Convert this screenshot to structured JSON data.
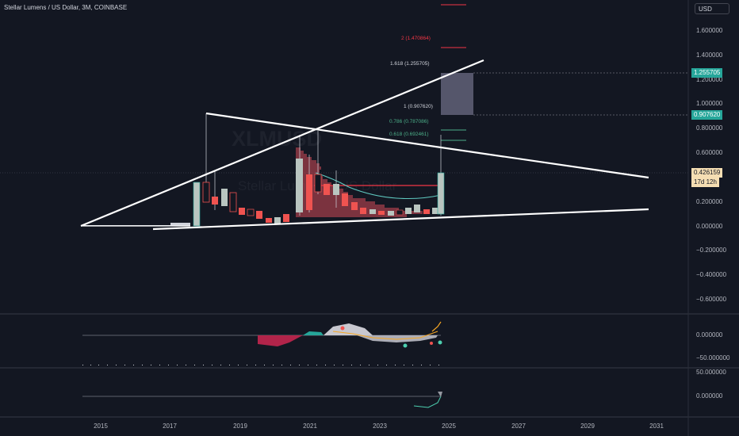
{
  "header": {
    "symbol_title": "Stellar Lumens / US Dollar, 3M, COINBASE",
    "currency_button": "USD"
  },
  "watermark": {
    "ticker": "XLMUSD",
    "name": "Stellar Lumens / US Dollar"
  },
  "price_axis": {
    "ticks": [
      "1.600000",
      "1.400000",
      "1.200000",
      "1.000000",
      "0.800000",
      "0.600000",
      "0.400000",
      "0.200000",
      "0.000000",
      "−0.200000",
      "−0.400000",
      "−0.600000"
    ],
    "tick_values": [
      1.6,
      1.4,
      1.2,
      1.0,
      0.8,
      0.6,
      0.4,
      0.2,
      0.0,
      -0.2,
      -0.4,
      -0.6
    ],
    "labels": {
      "fib_1618": "1.255705",
      "fib_1": "0.907620",
      "current_price": "0.426159",
      "countdown": "17d 12h"
    }
  },
  "fib_levels": [
    {
      "text": "2 (1.470864)",
      "value": 1.470864,
      "color": "#f23645"
    },
    {
      "text": "1.618 (1.255705)",
      "value": 1.255705,
      "color": "#d1d4dc"
    },
    {
      "text": "1 (0.907620)",
      "value": 0.90762,
      "color": "#d1d4dc"
    },
    {
      "text": "0.786 (0.787086)",
      "value": 0.787086,
      "color": "#4caf89"
    },
    {
      "text": "0.618 (0.692461)",
      "value": 0.692461,
      "color": "#4caf89"
    }
  ],
  "indicator1": {
    "ticks": [
      "0.000000",
      "−50.000000"
    ]
  },
  "indicator2": {
    "ticks": [
      "50.000000",
      "0.000000"
    ]
  },
  "time_axis": {
    "ticks": [
      "2015",
      "2017",
      "2019",
      "2021",
      "2023",
      "2025",
      "2027",
      "2029",
      "2031"
    ]
  },
  "colors": {
    "background": "#131722",
    "up": "#26a69a",
    "down": "#ef5350",
    "price_label_green": "#26a69a",
    "countdown_bg": "#f5deb3"
  }
}
